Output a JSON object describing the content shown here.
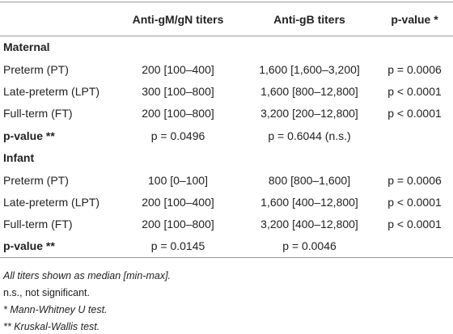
{
  "table": {
    "header": [
      "",
      "Anti-gM/gN titers",
      "Anti-gB titers",
      "p-value *"
    ],
    "sections": [
      {
        "title": "Maternal",
        "rows": [
          [
            "Preterm (PT)",
            "200 [100–400]",
            "1,600 [1,600–3,200]",
            "p = 0.0006"
          ],
          [
            "Late-preterm (LPT)",
            "300 [100–800]",
            "1,600 [800–12,800]",
            "p < 0.0001"
          ],
          [
            "Full-term (FT)",
            "200 [100–800]",
            "3,200 [200–12,800]",
            "p < 0.0001"
          ]
        ],
        "pvalue_row": [
          "p-value **",
          "p = 0.0496",
          "p = 0.6044 (n.s.)"
        ]
      },
      {
        "title": "Infant",
        "rows": [
          [
            "Preterm (PT)",
            "100 [0–100]",
            "800 [800–1,600]",
            "p = 0.0006"
          ],
          [
            "Late-preterm (LPT)",
            "200 [100–400]",
            "1,600 [400–12,800]",
            "p < 0.0001"
          ],
          [
            "Full-term (FT)",
            "200 [100–800]",
            "3,200 [400–12,800]",
            "p < 0.0001"
          ]
        ],
        "pvalue_row": [
          "p-value **",
          "p = 0.0145",
          "p = 0.0046"
        ]
      }
    ],
    "footnotes": [
      "All titers shown as median [min-max].",
      "n.s., not significant.",
      "* Mann-Whitney U test.",
      "** Kruskal-Wallis test."
    ]
  }
}
